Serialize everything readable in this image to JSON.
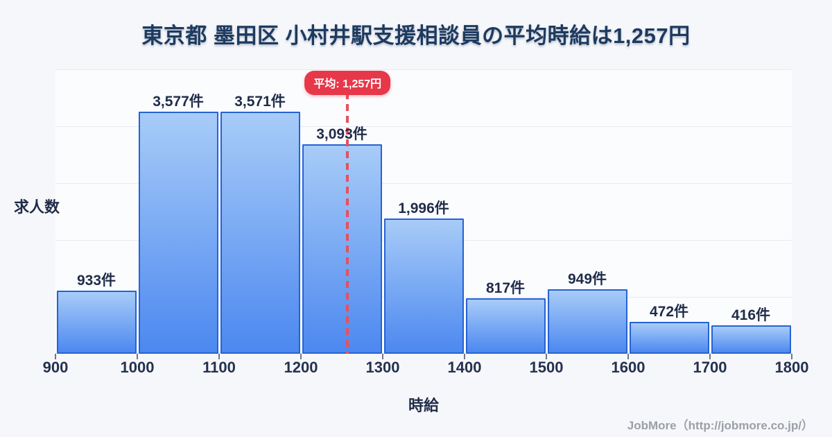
{
  "page": {
    "title": "東京都 墨田区 小村井駅支援相談員の平均時給は1,257円",
    "footer": "JobMore（http://jobmore.co.jp/）"
  },
  "chart_data": {
    "type": "bar",
    "subtype": "histogram",
    "title": "東京都 墨田区 小村井駅支援相談員の平均時給は1,257円",
    "xlabel": "時給",
    "ylabel": "求人数",
    "bin_edges": [
      900,
      1000,
      1100,
      1200,
      1300,
      1400,
      1500,
      1600,
      1700,
      1800
    ],
    "x_tick_labels": [
      "900",
      "1000",
      "1100",
      "1200",
      "1300",
      "1400",
      "1500",
      "1600",
      "1700",
      "1800"
    ],
    "values": [
      933,
      3577,
      3571,
      3093,
      1996,
      817,
      949,
      472,
      416
    ],
    "bar_labels": [
      "933件",
      "3,577件",
      "3,571件",
      "3,093件",
      "1,996件",
      "817件",
      "949件",
      "472件",
      "416件"
    ],
    "average": {
      "value": 1257,
      "label": "平均: 1,257円",
      "unit": "円"
    },
    "xlim": [
      900,
      1800
    ],
    "ylim": [
      0,
      4200
    ],
    "grid": true,
    "gridline_count": 5,
    "legend": "none",
    "colors": {
      "bar_fill_top": "#a8ccf8",
      "bar_fill_bottom": "#4c88f0",
      "bar_border": "#2563d4",
      "average_line": "#e8505c",
      "average_badge_bg": "#e73849",
      "average_badge_text": "#ffffff",
      "title_text": "#1d3a5f",
      "label_text": "#1f2c49",
      "footer_text": "#9b9fa8",
      "gridline": "#e8eaf0",
      "page_bg": "#f6f7fa",
      "plot_bg": "#fbfcfe"
    }
  }
}
